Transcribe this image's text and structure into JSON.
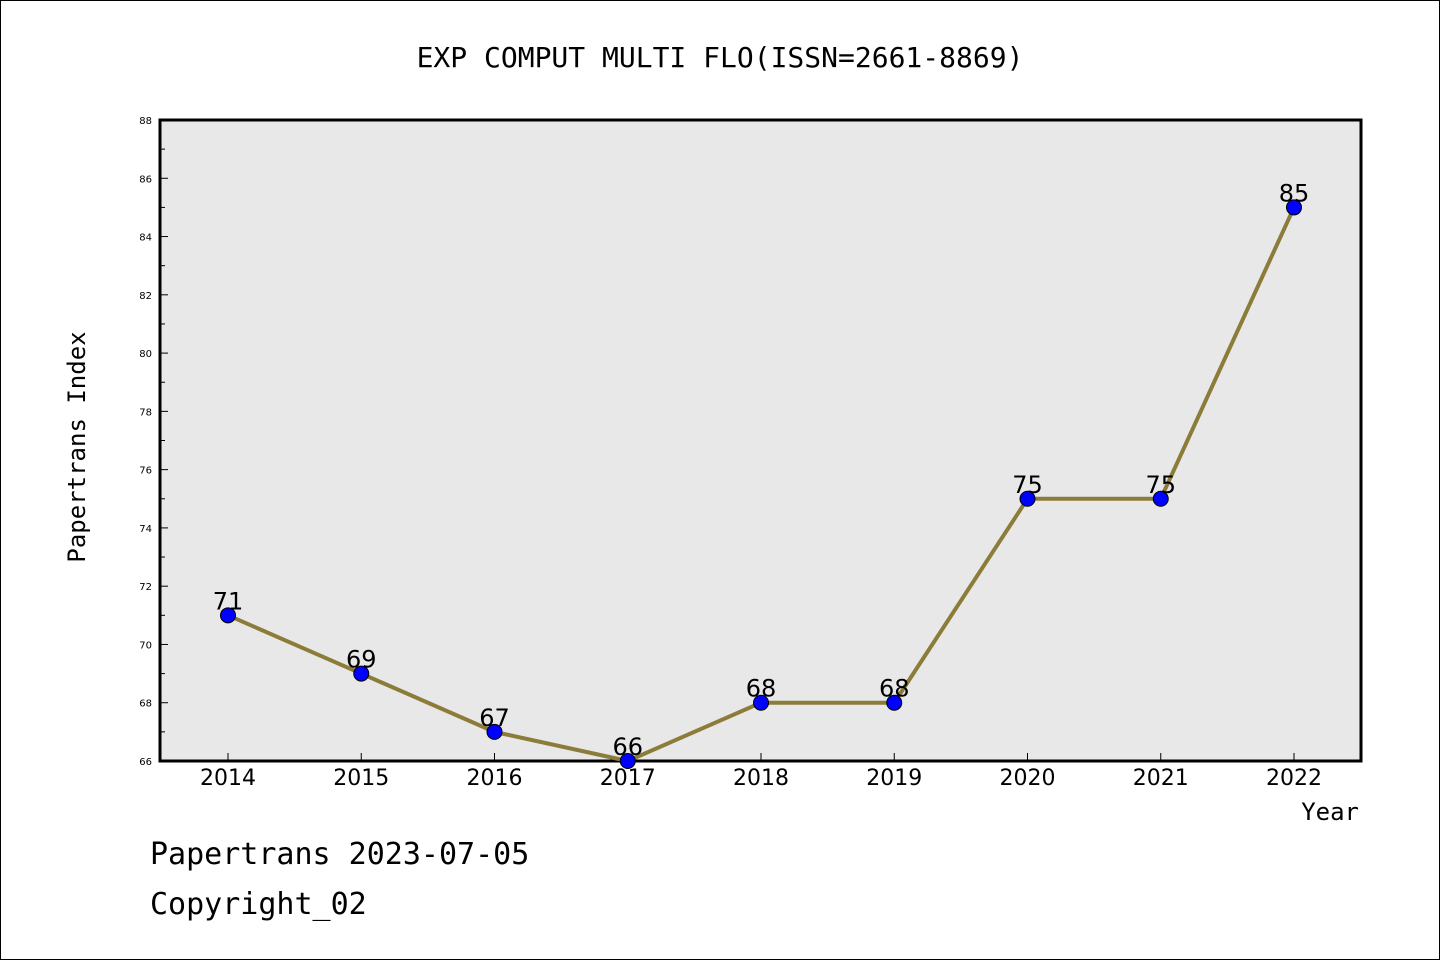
{
  "chart_data": {
    "type": "line",
    "title": "EXP COMPUT MULTI FLO(ISSN=2661-8869)",
    "xlabel": "Year",
    "ylabel": "Papertrans Index",
    "categories": [
      "2014",
      "2015",
      "2016",
      "2017",
      "2018",
      "2019",
      "2020",
      "2021",
      "2022"
    ],
    "values": [
      71,
      69,
      67,
      66,
      68,
      68,
      75,
      75,
      85
    ],
    "ylim": [
      66,
      88
    ],
    "yticks": [
      "66",
      "68",
      "70",
      "72",
      "74",
      "76",
      "78",
      "80",
      "82",
      "84",
      "86",
      "88"
    ],
    "data_labels": [
      "71",
      "69",
      "67",
      "66",
      "68",
      "68",
      "75",
      "75",
      "85"
    ],
    "grid": false,
    "colors": {
      "line": "#8c7c3a",
      "marker_fill": "#0000ff",
      "marker_edge": "#000000",
      "plot_background": "#e8e8e8"
    }
  },
  "footer": {
    "line1": "Papertrans 2023-07-05",
    "line2": "Copyright_02"
  }
}
